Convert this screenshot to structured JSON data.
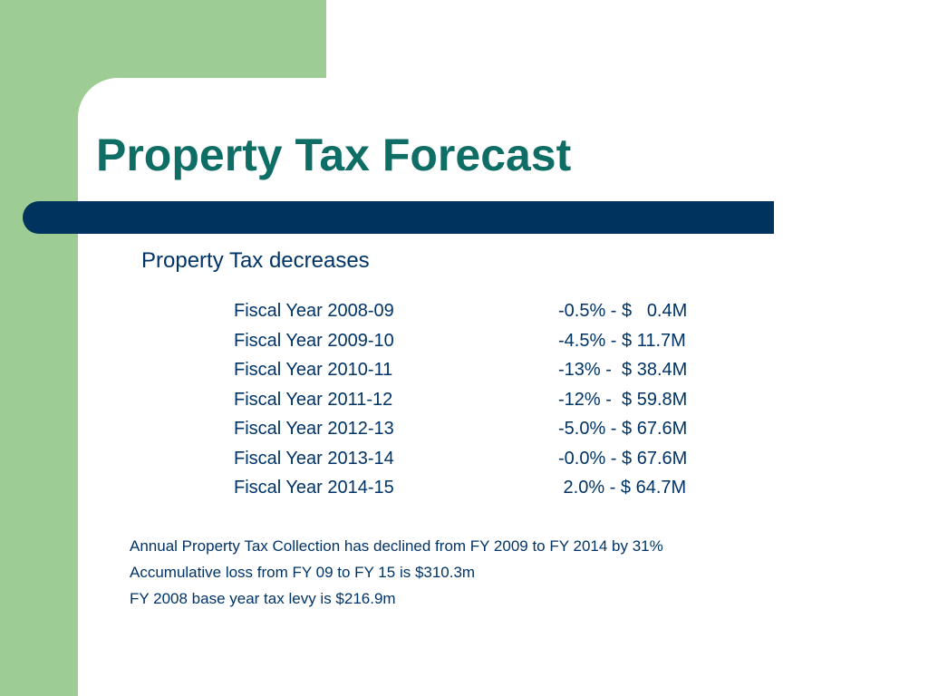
{
  "slide": {
    "title": "Property Tax Forecast",
    "subtitle": "Property Tax decreases",
    "rows": [
      {
        "year": "Fiscal Year 2008-09",
        "amount": "-0.5% - $   0.4M"
      },
      {
        "year": "Fiscal Year 2009-10",
        "amount": "-4.5% - $ 11.7M"
      },
      {
        "year": "Fiscal Year 2010-11",
        "amount": "-13% -  $ 38.4M"
      },
      {
        "year": "Fiscal Year 2011-12",
        "amount": "-12% -  $ 59.8M"
      },
      {
        "year": "Fiscal Year 2012-13",
        "amount": "-5.0% - $ 67.6M"
      },
      {
        "year": "Fiscal Year 2013-14",
        "amount": "-0.0% - $ 67.6M"
      },
      {
        "year": "Fiscal Year 2014-15",
        "amount": " 2.0% - $ 64.7M"
      }
    ],
    "notes": [
      "Annual Property Tax Collection has declined from FY 2009 to FY 2014 by 31%",
      "Accumulative loss from FY 09 to FY 15 is $310.3m",
      "FY 2008 base year tax levy is $216.9m"
    ]
  },
  "colors": {
    "accent_green": "#9dcd95",
    "title_teal": "#0e6e66",
    "bar_navy": "#00335e",
    "text_navy": "#003366"
  }
}
